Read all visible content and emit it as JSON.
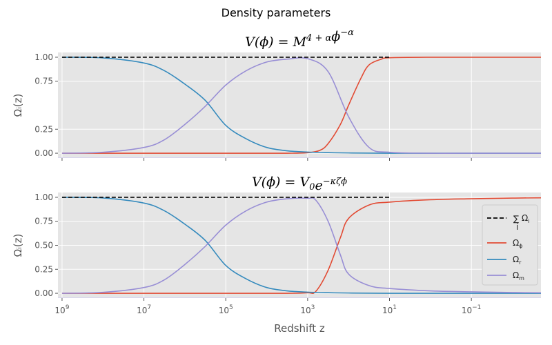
{
  "suptitle": "Density parameters",
  "xlabel": "Redshift z",
  "colors": {
    "phi": "#E24A33",
    "r": "#348ABD",
    "m": "#988ED5",
    "total": "#000000",
    "panel_bg": "#E5E5E5",
    "grid": "#FFFFFF"
  },
  "legend": {
    "position": "center-right",
    "entries": [
      {
        "key": "total",
        "sum_symbol": "∑",
        "sum_sub": "i",
        "label": "Ω",
        "sub": "i",
        "style": "dashed"
      },
      {
        "key": "phi",
        "label": "Ω",
        "sub": "ϕ",
        "style": "solid"
      },
      {
        "key": "r",
        "label": "Ω",
        "sub": "r",
        "style": "solid"
      },
      {
        "key": "m",
        "label": "Ω",
        "sub": "m",
        "style": "solid"
      }
    ]
  },
  "chart_data": [
    {
      "type": "line",
      "title_parts": {
        "lhs": "V(ϕ) = M",
        "sup": "4 + α",
        "mid": "ϕ",
        "sup2": "−α"
      },
      "ylabel": "Ωᵢ(z)",
      "x_scale": "log",
      "x_reversed": true,
      "xlim_log10": [
        9.1,
        -2.7
      ],
      "ylim": [
        -0.05,
        1.05
      ],
      "xticks_log10": [
        9,
        7,
        5,
        3,
        1,
        -1
      ],
      "xtick_labels_shown": false,
      "xticks": [
        {
          "base": "10",
          "exp": "9"
        },
        {
          "base": "10",
          "exp": "7"
        },
        {
          "base": "10",
          "exp": "5"
        },
        {
          "base": "10",
          "exp": "3"
        },
        {
          "base": "10",
          "exp": "1"
        },
        {
          "base": "10",
          "exp": "−1"
        }
      ],
      "yticks": [
        "0.00",
        "0.25",
        "0.75",
        "1.00"
      ],
      "ytick_values": [
        0,
        0.25,
        0.75,
        1.0
      ],
      "series": [
        {
          "key": "r",
          "log10_z": [
            9,
            8,
            7,
            6.5,
            6,
            5.5,
            5,
            4.5,
            4,
            3.5,
            3,
            2.5,
            2,
            1,
            0,
            -1,
            -2,
            -2.7
          ],
          "y": [
            1.0,
            0.993,
            0.94,
            0.86,
            0.72,
            0.55,
            0.29,
            0.15,
            0.06,
            0.025,
            0.012,
            0.006,
            0.003,
            0.0,
            0.0,
            0.0,
            0.0,
            0.0
          ]
        },
        {
          "key": "m",
          "log10_z": [
            9,
            8,
            7,
            6.5,
            6,
            5.5,
            5,
            4.5,
            4,
            3.5,
            3,
            2.5,
            2,
            1.5,
            1,
            0,
            -1,
            -2,
            -2.7
          ],
          "y": [
            0.0,
            0.01,
            0.06,
            0.14,
            0.3,
            0.49,
            0.71,
            0.86,
            0.95,
            0.98,
            0.985,
            0.85,
            0.38,
            0.06,
            0.01,
            0.0,
            0.0,
            0.0,
            0.0
          ]
        },
        {
          "key": "phi",
          "log10_z": [
            9,
            7,
            5,
            4,
            3.5,
            3,
            2.7,
            2.5,
            2.2,
            2,
            1.7,
            1.5,
            1.2,
            1,
            0,
            -1,
            -2,
            -2.7
          ],
          "y": [
            0.0,
            0.0,
            0.0,
            0.0,
            0.0,
            0.005,
            0.03,
            0.1,
            0.3,
            0.5,
            0.78,
            0.92,
            0.98,
            0.995,
            1.0,
            1.0,
            1.0,
            1.0
          ]
        },
        {
          "key": "total",
          "log10_z": [
            9,
            -2.7
          ],
          "y": [
            1.0,
            1.0
          ],
          "x_end_log10": 1.0
        }
      ]
    },
    {
      "type": "line",
      "title_parts": {
        "lhs": "V(ϕ) = V",
        "sub": "0",
        "mid": "e",
        "sup2": "−κζϕ"
      },
      "ylabel": "Ωᵢ(z)",
      "x_scale": "log",
      "x_reversed": true,
      "xlim_log10": [
        9.1,
        -2.7
      ],
      "ylim": [
        -0.05,
        1.05
      ],
      "xticks_log10": [
        9,
        7,
        5,
        3,
        1,
        -1
      ],
      "xtick_labels_shown": true,
      "xticks": [
        {
          "base": "10",
          "exp": "9"
        },
        {
          "base": "10",
          "exp": "7"
        },
        {
          "base": "10",
          "exp": "5"
        },
        {
          "base": "10",
          "exp": "3"
        },
        {
          "base": "10",
          "exp": "1"
        },
        {
          "base": "10",
          "exp": "−1"
        }
      ],
      "yticks": [
        "0.00",
        "0.25",
        "0.50",
        "0.75",
        "1.00"
      ],
      "ytick_values": [
        0,
        0.25,
        0.5,
        0.75,
        1.0
      ],
      "series": [
        {
          "key": "r",
          "log10_z": [
            9,
            8,
            7,
            6.5,
            6,
            5.5,
            5,
            4.5,
            4,
            3.5,
            3,
            2.5,
            2,
            1,
            0,
            -1,
            -2,
            -2.7
          ],
          "y": [
            1.0,
            0.993,
            0.94,
            0.86,
            0.72,
            0.55,
            0.29,
            0.15,
            0.06,
            0.025,
            0.012,
            0.006,
            0.003,
            0.0,
            0.0,
            0.0,
            0.0,
            0.0
          ]
        },
        {
          "key": "m",
          "log10_z": [
            9,
            8,
            7,
            6.5,
            6,
            5.5,
            5,
            4.5,
            4,
            3.5,
            3,
            2.8,
            2.5,
            2.2,
            2,
            1.5,
            1,
            0,
            -1,
            -2,
            -2.7
          ],
          "y": [
            0.0,
            0.01,
            0.06,
            0.14,
            0.3,
            0.49,
            0.71,
            0.86,
            0.95,
            0.985,
            0.99,
            0.97,
            0.75,
            0.4,
            0.2,
            0.08,
            0.05,
            0.025,
            0.015,
            0.008,
            0.005
          ]
        },
        {
          "key": "phi",
          "log10_z": [
            9,
            7,
            5,
            3.5,
            3,
            2.8,
            2.5,
            2.2,
            2,
            1.5,
            1,
            0,
            -1,
            -2,
            -2.7
          ],
          "y": [
            0.0,
            0.0,
            0.0,
            0.0,
            0.005,
            0.02,
            0.24,
            0.58,
            0.78,
            0.92,
            0.95,
            0.975,
            0.985,
            0.992,
            0.995
          ]
        },
        {
          "key": "total",
          "log10_z": [
            9,
            -2.7
          ],
          "y": [
            1.0,
            1.0
          ],
          "x_end_log10": 1.0
        }
      ]
    }
  ]
}
